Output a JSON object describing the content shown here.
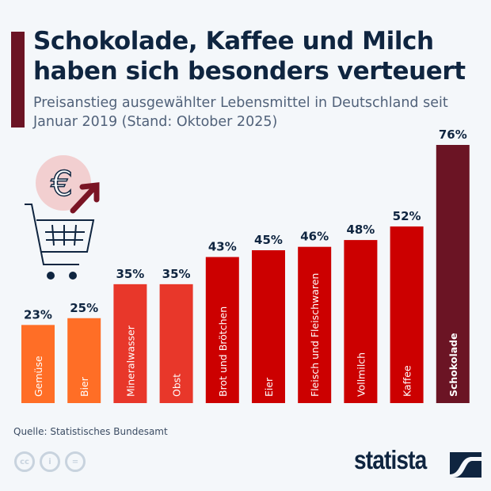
{
  "header": {
    "title": "Schokolade, Kaffee und Milch haben sich besonders verteuert",
    "subtitle": "Preisanstieg ausgewählter Lebensmittel in Deutschland seit Januar 2019 (Stand: Oktober 2025)"
  },
  "chart_data": {
    "type": "bar",
    "title": "Schokolade, Kaffee und Milch haben sich besonders verteuert",
    "subtitle": "Preisanstieg ausgewählter Lebensmittel in Deutschland seit Januar 2019 (Stand: Oktober 2025)",
    "categories": [
      "Gemüse",
      "Bier",
      "Mineralwasser",
      "Obst",
      "Brot und Brötchen",
      "Eier",
      "Fleisch und Fleischwaren",
      "Vollmilch",
      "Kaffee",
      "Schokolade"
    ],
    "values": [
      23,
      25,
      35,
      35,
      43,
      45,
      46,
      48,
      52,
      76
    ],
    "data_labels": [
      "23%",
      "25%",
      "35%",
      "35%",
      "43%",
      "45%",
      "46%",
      "48%",
      "52%",
      "76%"
    ],
    "colors": [
      "#ff6e26",
      "#ff6e26",
      "#e8372a",
      "#e8372a",
      "#cc0000",
      "#cc0000",
      "#cc0000",
      "#cc0000",
      "#cc0000",
      "#6b1424"
    ],
    "ylim": [
      0,
      80
    ],
    "unit": "%",
    "grid": false
  },
  "footer": {
    "source": "Quelle: Statistisches Bundesamt",
    "logo": "statista",
    "license_icons": [
      "cc-icon",
      "by-icon",
      "nd-icon"
    ]
  }
}
